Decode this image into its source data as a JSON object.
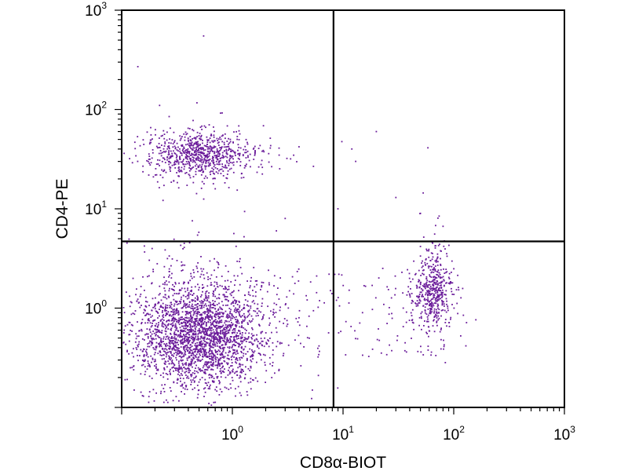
{
  "chart_data": {
    "type": "scatter",
    "title": "",
    "xlabel": "CD8α-BIOT",
    "ylabel": "CD4-PE",
    "xscale": "log",
    "yscale": "log",
    "xlim": [
      0.1,
      1000
    ],
    "ylim": [
      0.1,
      1000
    ],
    "grid": false,
    "legend": "none",
    "point_color": "#6a1b9a",
    "x_tick_labels": [
      {
        "base": "10",
        "exp": "0",
        "value": 1
      },
      {
        "base": "10",
        "exp": "1",
        "value": 10
      },
      {
        "base": "10",
        "exp": "2",
        "value": 100
      },
      {
        "base": "10",
        "exp": "3",
        "value": 1000
      }
    ],
    "y_tick_labels": [
      {
        "base": "10",
        "exp": "0",
        "value": 1
      },
      {
        "base": "10",
        "exp": "1",
        "value": 10
      },
      {
        "base": "10",
        "exp": "2",
        "value": 100
      },
      {
        "base": "10",
        "exp": "3",
        "value": 1000
      }
    ],
    "quadrant_gates": {
      "x": 8.2,
      "y": 4.7
    },
    "populations": [
      {
        "x_center": 0.5,
        "y_center": 0.55,
        "x_spread_log10": 0.28,
        "y_spread_log10": 0.26
      },
      {
        "x_center": 0.5,
        "y_center": 35,
        "x_spread_log10": 0.24,
        "y_spread_log10": 0.11
      },
      {
        "x_center": 65,
        "y_center": 1.5,
        "x_spread_log10": 0.09,
        "y_spread_log10": 0.2
      }
    ],
    "points": [
      [
        0.55,
        550
      ],
      [
        0.14,
        270
      ],
      [
        0.22,
        110
      ],
      [
        20,
        60
      ],
      [
        12,
        40
      ],
      [
        0.45,
        0.5
      ],
      [
        0.6,
        0.62
      ],
      [
        0.38,
        0.42
      ],
      [
        0.7,
        0.55
      ],
      [
        0.5,
        0.75
      ],
      [
        0.42,
        32
      ],
      [
        0.6,
        38
      ],
      [
        0.35,
        36
      ],
      [
        0.55,
        30
      ],
      [
        0.48,
        42
      ],
      [
        60,
        1.4
      ],
      [
        70,
        1.8
      ],
      [
        55,
        1.2
      ],
      [
        75,
        1.5
      ],
      [
        65,
        1.1
      ],
      [
        15,
        0.9
      ],
      [
        25,
        0.7
      ],
      [
        35,
        1.0
      ],
      [
        4,
        0.8
      ],
      [
        2.5,
        6
      ],
      [
        3,
        8
      ],
      [
        9,
        10
      ],
      [
        13,
        30
      ],
      [
        30,
        13
      ],
      [
        50,
        9
      ]
    ]
  }
}
